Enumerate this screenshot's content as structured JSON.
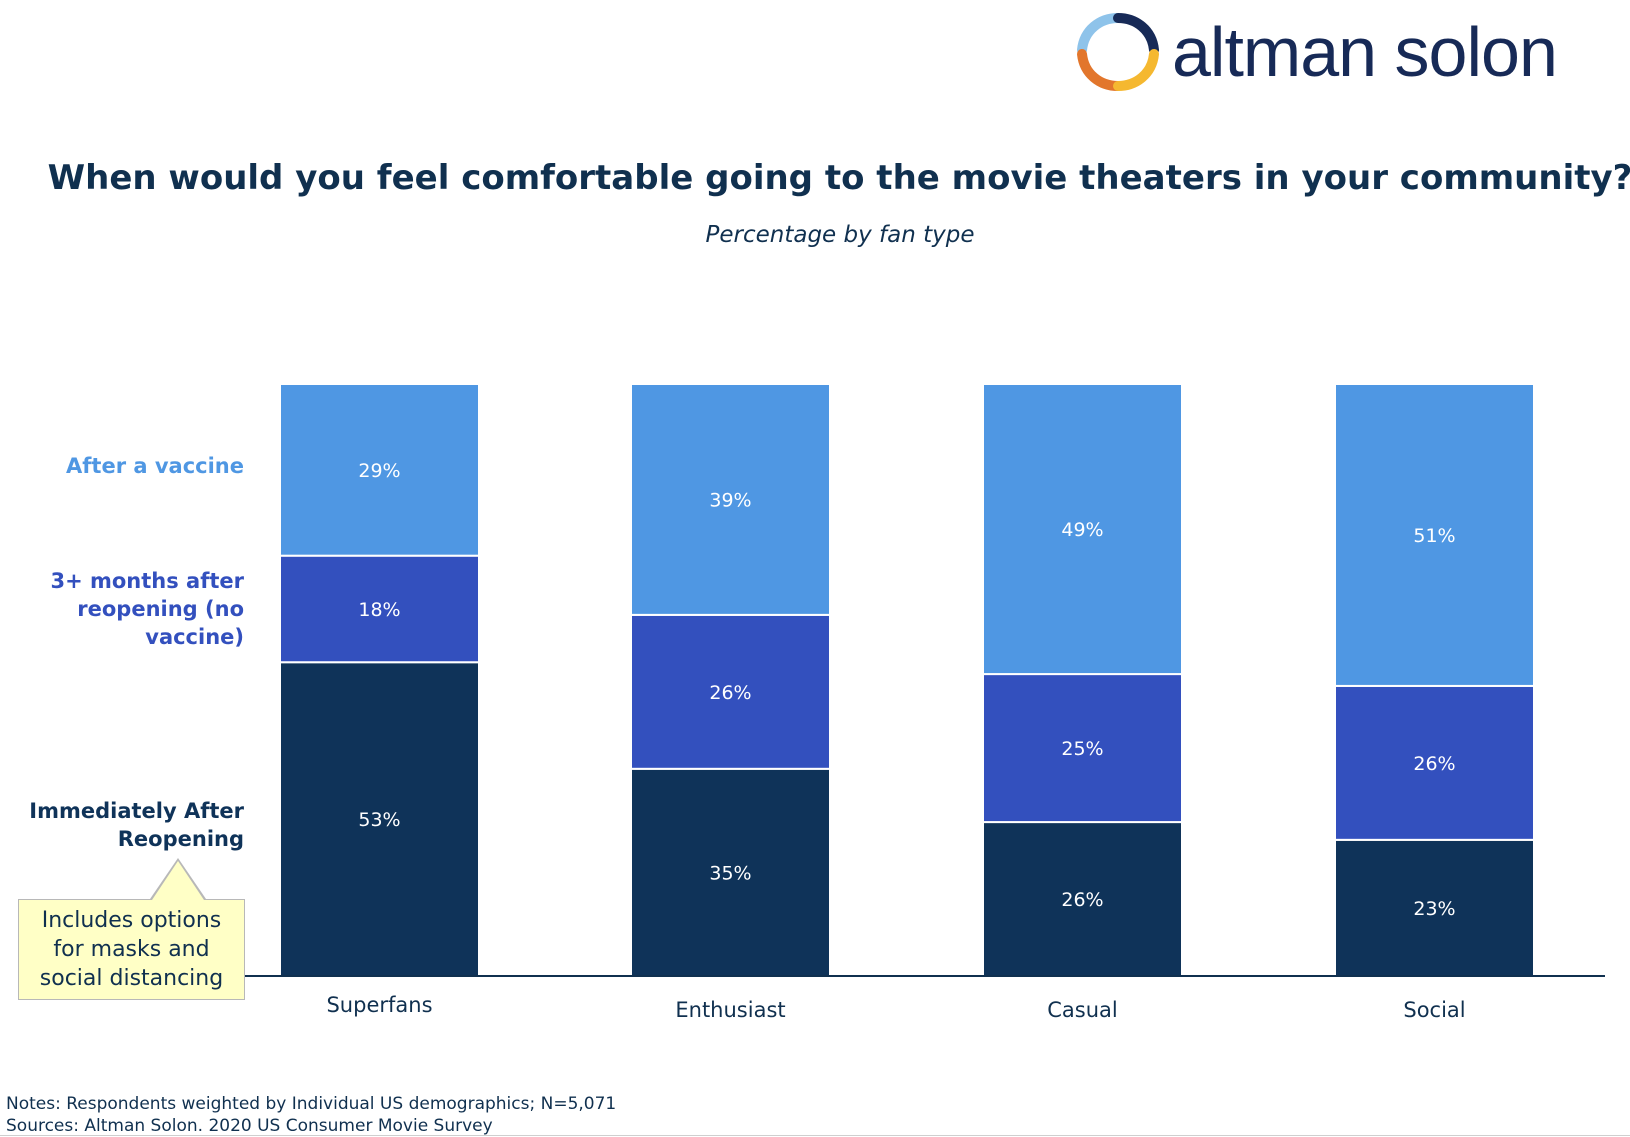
{
  "brand": {
    "name": "altman solon"
  },
  "title": "When would you feel comfortable going to the movie theaters in your community?",
  "subtitle": "Percentage by fan type",
  "legend": {
    "after_vaccine": "After a vaccine",
    "three_months_line1": "3+ months after",
    "three_months_line2": "reopening (no",
    "three_months_line3": "vaccine)",
    "immediately_line1": "Immediately After",
    "immediately_line2": "Reopening"
  },
  "callout": {
    "line1": "Includes options",
    "line2": "for masks and",
    "line3": "social distancing"
  },
  "notes": {
    "line1": "Notes: Respondents weighted by Individual US demographics; N=5,071",
    "line2": "Sources: Altman Solon. 2020 US Consumer Movie Survey"
  },
  "colors": {
    "after_vaccine": "#4f97e3",
    "three_months": "#3350be",
    "immediately": "#0f3359",
    "navy": "#10304f"
  },
  "chart_data": {
    "type": "bar",
    "stacked": true,
    "orientation": "vertical",
    "categories": [
      "Superfans",
      "Enthusiast",
      "Casual",
      "Social"
    ],
    "series": [
      {
        "name": "Immediately After Reopening",
        "values": [
          53,
          35,
          26,
          23
        ]
      },
      {
        "name": "3+ months after reopening (no vaccine)",
        "values": [
          18,
          26,
          25,
          26
        ]
      },
      {
        "name": "After a vaccine",
        "values": [
          29,
          39,
          49,
          51
        ]
      }
    ],
    "value_labels": [
      [
        "53%",
        "35%",
        "26%",
        "23%"
      ],
      [
        "18%",
        "26%",
        "25%",
        "26%"
      ],
      [
        "29%",
        "39%",
        "49%",
        "51%"
      ]
    ],
    "ylim": [
      0,
      100
    ],
    "title": "When would you feel comfortable going to the movie theaters in your community?",
    "subtitle": "Percentage by fan type",
    "xlabel": "",
    "ylabel": "",
    "legend_position": "left"
  }
}
